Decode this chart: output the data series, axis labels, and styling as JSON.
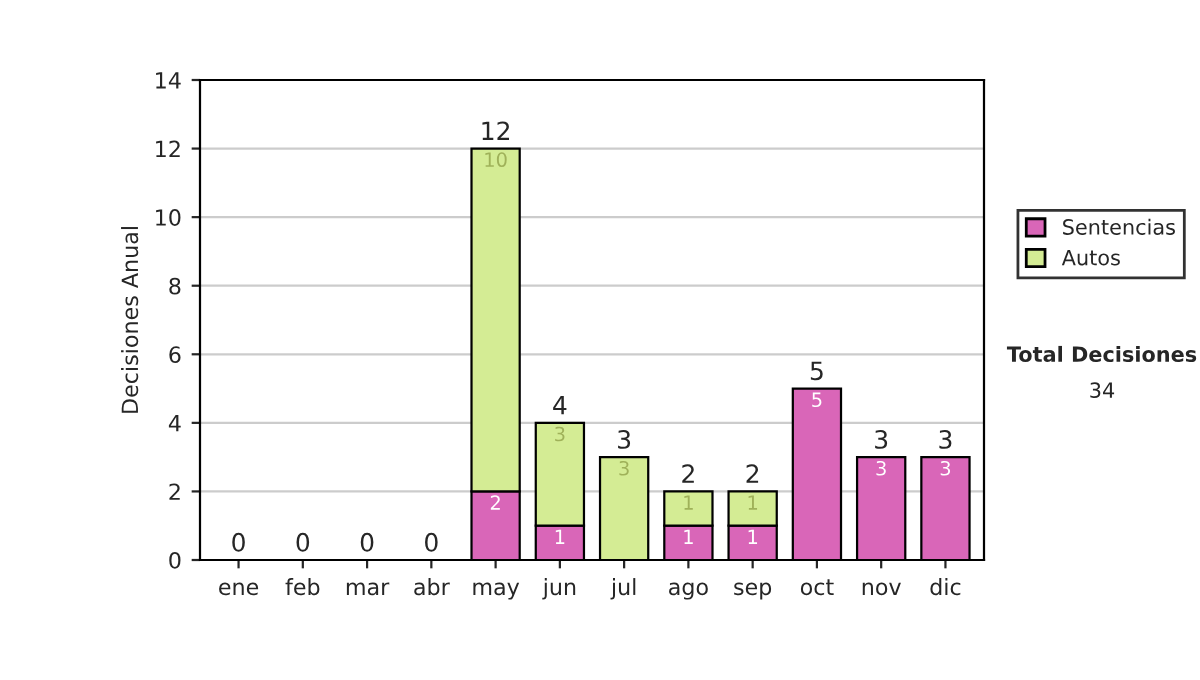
{
  "chart_data": {
    "type": "bar",
    "stacked": true,
    "ylabel": "Decisiones Anual",
    "categories": [
      "ene",
      "feb",
      "mar",
      "abr",
      "may",
      "jun",
      "jul",
      "ago",
      "sep",
      "oct",
      "nov",
      "dic"
    ],
    "series": [
      {
        "name": "Sentencias",
        "color": "#d966b8",
        "values": [
          0,
          0,
          0,
          0,
          2,
          1,
          0,
          1,
          1,
          5,
          3,
          3
        ],
        "value_labels": [
          null,
          null,
          null,
          null,
          "2",
          "1",
          null,
          "1",
          "1",
          "5",
          "3",
          "3"
        ]
      },
      {
        "name": "Autos",
        "color": "#d4ec94",
        "values": [
          0,
          0,
          0,
          0,
          10,
          3,
          3,
          1,
          1,
          0,
          0,
          0
        ],
        "value_labels": [
          null,
          null,
          null,
          null,
          "10",
          "3",
          "3",
          "1",
          "1",
          null,
          null,
          null
        ]
      }
    ],
    "totals": [
      "0",
      "0",
      "0",
      "0",
      "12",
      "4",
      "3",
      "2",
      "2",
      "5",
      "3",
      "3"
    ],
    "ylim": [
      0,
      14
    ],
    "yticks": [
      0,
      2,
      4,
      6,
      8,
      10,
      12,
      14
    ],
    "grid": "y",
    "legend": "right",
    "annotations": [
      "Total Decisiones",
      "34"
    ]
  }
}
